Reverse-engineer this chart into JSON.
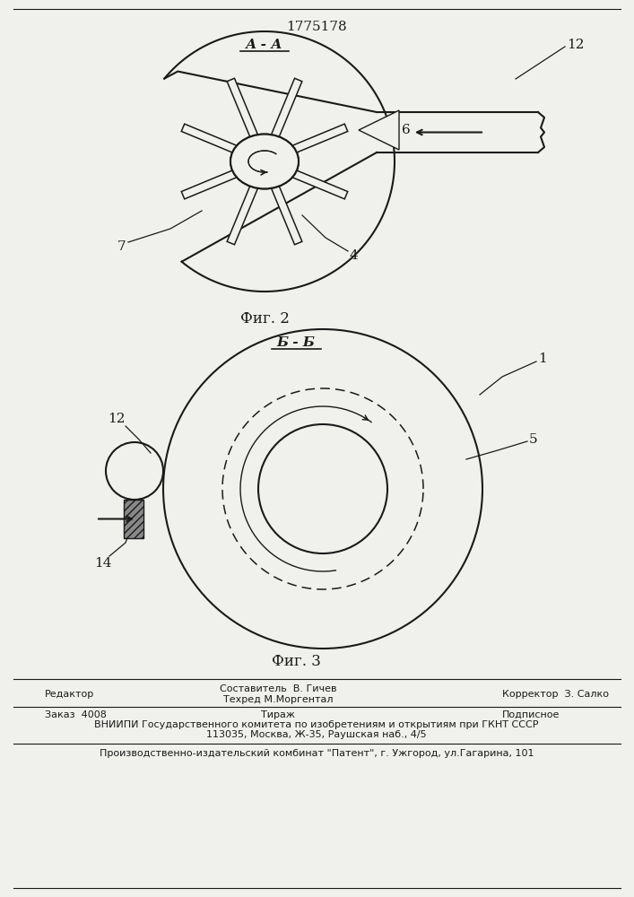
{
  "title": "1775178",
  "fig2_label": "Фиг. 2",
  "fig3_label": "Фиг. 3",
  "section_aa": "А - А",
  "section_bb": "Б - Б",
  "bg_color": "#f0f0ec",
  "line_color": "#1a1a1a",
  "footer_line1_left": "Редактор",
  "footer_line1_mid1": "Составитель  В. Гичев",
  "footer_line1_mid2": "Техред М.Моргентал",
  "footer_line1_right": "Корректор  З. Салко",
  "footer_line2_left": "Заказ  4008",
  "footer_line2_mid": "Тираж",
  "footer_line2_right": "Подписное",
  "footer_line3": "ВНИИПИ Государственного комитета по изобретениям и открытиям при ГКНТ СССР",
  "footer_line4": "113035, Москва, Ж-35, Раушская наб., 4/5",
  "footer_line5": "Производственно-издательский комбинат \"Патент\", г. Ужгород, ул.Гагарина, 101"
}
